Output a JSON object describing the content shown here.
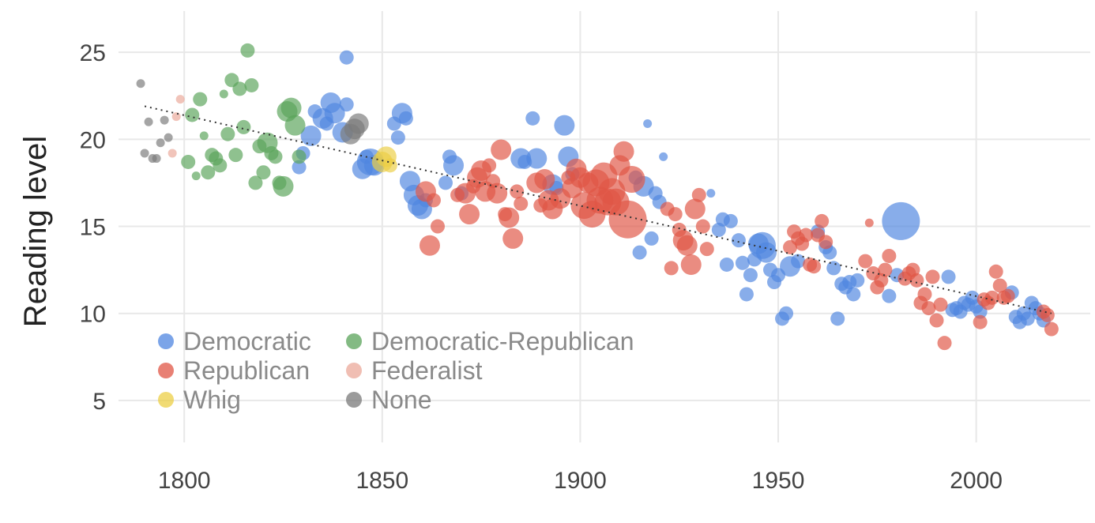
{
  "chart_data": {
    "type": "scatter",
    "title": "",
    "xlabel": "",
    "ylabel": "Reading level",
    "xlim": [
      1783,
      2030
    ],
    "ylim": [
      2.5,
      28
    ],
    "x_ticks": [
      1800,
      1850,
      1900,
      1950,
      2000
    ],
    "y_ticks": [
      5,
      10,
      15,
      20,
      25
    ],
    "grid": true,
    "legend_position": "bottom-left",
    "trendline": {
      "style": "dotted",
      "x": [
        1790,
        2019
      ],
      "y": [
        21.9,
        10.0
      ]
    },
    "series": [
      {
        "name": "Democratic",
        "color": "#4f86e0",
        "points": [
          [
            1829,
            18.4,
            2
          ],
          [
            1830,
            19.2,
            2
          ],
          [
            1832,
            20.2,
            3
          ],
          [
            1833,
            21.6,
            2
          ],
          [
            1835,
            21.2,
            3
          ],
          [
            1836,
            20.9,
            2
          ],
          [
            1837,
            22.1,
            3
          ],
          [
            1838,
            21.5,
            3
          ],
          [
            1840,
            20.4,
            3
          ],
          [
            1841,
            22.0,
            2
          ],
          [
            1841,
            24.7,
            2
          ],
          [
            1845,
            18.3,
            3
          ],
          [
            1846,
            19.0,
            2
          ],
          [
            1847,
            18.7,
            4
          ],
          [
            1848,
            18.5,
            3
          ],
          [
            1853,
            20.9,
            2
          ],
          [
            1854,
            20.1,
            2
          ],
          [
            1855,
            21.5,
            3
          ],
          [
            1856,
            21.2,
            2
          ],
          [
            1857,
            17.6,
            3
          ],
          [
            1858,
            16.8,
            3
          ],
          [
            1859,
            16.2,
            3
          ],
          [
            1860,
            16.0,
            3
          ],
          [
            1861,
            16.5,
            2
          ],
          [
            1866,
            17.5,
            2
          ],
          [
            1867,
            19.0,
            2
          ],
          [
            1868,
            18.5,
            3
          ],
          [
            1870,
            16.9,
            2
          ],
          [
            1885,
            18.9,
            3
          ],
          [
            1886,
            18.7,
            2
          ],
          [
            1888,
            21.2,
            2
          ],
          [
            1889,
            18.9,
            3
          ],
          [
            1893,
            17.4,
            3
          ],
          [
            1894,
            17.2,
            2
          ],
          [
            1896,
            20.8,
            3
          ],
          [
            1897,
            19.0,
            3
          ],
          [
            1898,
            18.0,
            2
          ],
          [
            1914,
            17.8,
            2
          ],
          [
            1915,
            13.5,
            2
          ],
          [
            1916,
            17.3,
            3
          ],
          [
            1917,
            20.9,
            1
          ],
          [
            1918,
            14.3,
            2
          ],
          [
            1919,
            16.9,
            2
          ],
          [
            1920,
            16.4,
            2
          ],
          [
            1921,
            19.0,
            1
          ],
          [
            1933,
            16.9,
            1
          ],
          [
            1935,
            14.8,
            2
          ],
          [
            1936,
            15.4,
            2
          ],
          [
            1937,
            12.8,
            2
          ],
          [
            1938,
            15.3,
            2
          ],
          [
            1940,
            14.2,
            2
          ],
          [
            1941,
            12.9,
            2
          ],
          [
            1942,
            11.1,
            2
          ],
          [
            1943,
            12.2,
            2
          ],
          [
            1944,
            13.1,
            2
          ],
          [
            1945,
            14.0,
            3
          ],
          [
            1946,
            13.9,
            4
          ],
          [
            1947,
            13.5,
            3
          ],
          [
            1948,
            12.5,
            2
          ],
          [
            1949,
            11.8,
            2
          ],
          [
            1950,
            12.2,
            2
          ],
          [
            1951,
            9.7,
            2
          ],
          [
            1952,
            10.0,
            2
          ],
          [
            1953,
            12.7,
            3
          ],
          [
            1955,
            13.0,
            2
          ],
          [
            1960,
            14.7,
            2
          ],
          [
            1962,
            13.8,
            2
          ],
          [
            1963,
            13.5,
            2
          ],
          [
            1964,
            12.6,
            2
          ],
          [
            1965,
            9.7,
            2
          ],
          [
            1966,
            11.7,
            2
          ],
          [
            1967,
            11.5,
            2
          ],
          [
            1968,
            11.8,
            2
          ],
          [
            1969,
            11.1,
            2
          ],
          [
            1970,
            11.9,
            2
          ],
          [
            1978,
            11.0,
            2
          ],
          [
            1980,
            12.2,
            2
          ],
          [
            1981,
            15.3,
            5
          ],
          [
            1993,
            12.1,
            2
          ],
          [
            1994,
            10.2,
            2
          ],
          [
            1995,
            10.3,
            2
          ],
          [
            1996,
            10.1,
            2
          ],
          [
            1997,
            10.6,
            2
          ],
          [
            1998,
            10.5,
            2
          ],
          [
            1999,
            10.9,
            2
          ],
          [
            2000,
            10.4,
            2
          ],
          [
            2001,
            10.1,
            2
          ],
          [
            2009,
            11.2,
            2
          ],
          [
            2010,
            9.8,
            2
          ],
          [
            2011,
            9.5,
            2
          ],
          [
            2012,
            10.0,
            2
          ],
          [
            2013,
            9.7,
            2
          ],
          [
            2014,
            10.6,
            2
          ],
          [
            2015,
            10.3,
            2
          ],
          [
            2016,
            10.0,
            2
          ],
          [
            2017,
            9.6,
            2
          ]
        ]
      },
      {
        "name": "Democratic-Republican",
        "color": "#5aa35a",
        "points": [
          [
            1801,
            18.7,
            2
          ],
          [
            1802,
            21.4,
            2
          ],
          [
            1803,
            17.9,
            1
          ],
          [
            1804,
            22.3,
            2
          ],
          [
            1805,
            20.2,
            1
          ],
          [
            1806,
            18.1,
            2
          ],
          [
            1807,
            19.1,
            2
          ],
          [
            1808,
            18.9,
            2
          ],
          [
            1809,
            18.5,
            2
          ],
          [
            1810,
            22.6,
            1
          ],
          [
            1811,
            20.3,
            2
          ],
          [
            1812,
            23.4,
            2
          ],
          [
            1813,
            19.1,
            2
          ],
          [
            1814,
            22.9,
            2
          ],
          [
            1815,
            20.7,
            2
          ],
          [
            1816,
            25.1,
            2
          ],
          [
            1817,
            23.1,
            2
          ],
          [
            1818,
            17.5,
            2
          ],
          [
            1819,
            19.6,
            2
          ],
          [
            1820,
            18.1,
            2
          ],
          [
            1821,
            19.8,
            3
          ],
          [
            1822,
            19.2,
            2
          ],
          [
            1823,
            19.0,
            2
          ],
          [
            1824,
            17.5,
            2
          ],
          [
            1825,
            17.3,
            3
          ],
          [
            1826,
            21.6,
            3
          ],
          [
            1827,
            21.8,
            3
          ],
          [
            1828,
            20.8,
            3
          ],
          [
            1829,
            19.0,
            2
          ]
        ]
      },
      {
        "name": "Republican",
        "color": "#e05545",
        "points": [
          [
            1861,
            17.0,
            3
          ],
          [
            1862,
            13.9,
            3
          ],
          [
            1863,
            16.5,
            2
          ],
          [
            1864,
            15.0,
            2
          ],
          [
            1869,
            16.8,
            2
          ],
          [
            1871,
            16.9,
            3
          ],
          [
            1872,
            15.7,
            3
          ],
          [
            1873,
            17.3,
            2
          ],
          [
            1874,
            17.8,
            3
          ],
          [
            1875,
            18.2,
            3
          ],
          [
            1876,
            17.0,
            3
          ],
          [
            1877,
            18.5,
            2
          ],
          [
            1878,
            17.6,
            2
          ],
          [
            1879,
            16.9,
            3
          ],
          [
            1880,
            19.4,
            3
          ],
          [
            1881,
            15.7,
            2
          ],
          [
            1882,
            15.5,
            3
          ],
          [
            1883,
            14.3,
            3
          ],
          [
            1884,
            17.0,
            2
          ],
          [
            1885,
            16.3,
            2
          ],
          [
            1889,
            17.5,
            3
          ],
          [
            1890,
            16.2,
            2
          ],
          [
            1891,
            17.7,
            3
          ],
          [
            1892,
            16.5,
            3
          ],
          [
            1893,
            16.0,
            3
          ],
          [
            1895,
            16.6,
            3
          ],
          [
            1897,
            17.8,
            2
          ],
          [
            1898,
            17.2,
            3
          ],
          [
            1899,
            18.3,
            3
          ],
          [
            1900,
            17.8,
            3
          ],
          [
            1901,
            16.2,
            4
          ],
          [
            1902,
            17.5,
            3
          ],
          [
            1903,
            15.7,
            4
          ],
          [
            1904,
            17.5,
            4
          ],
          [
            1905,
            16.5,
            4
          ],
          [
            1906,
            17.9,
            4
          ],
          [
            1907,
            16.4,
            4
          ],
          [
            1908,
            17.0,
            4
          ],
          [
            1909,
            16.4,
            4
          ],
          [
            1910,
            18.5,
            3
          ],
          [
            1911,
            19.3,
            3
          ],
          [
            1912,
            15.4,
            5
          ],
          [
            1913,
            17.7,
            4
          ],
          [
            1922,
            16.0,
            2
          ],
          [
            1923,
            12.6,
            2
          ],
          [
            1924,
            15.7,
            2
          ],
          [
            1925,
            14.8,
            2
          ],
          [
            1926,
            14.2,
            3
          ],
          [
            1927,
            13.9,
            3
          ],
          [
            1928,
            12.8,
            3
          ],
          [
            1929,
            16.0,
            3
          ],
          [
            1930,
            16.8,
            2
          ],
          [
            1931,
            15.0,
            2
          ],
          [
            1932,
            13.7,
            2
          ],
          [
            1953,
            13.8,
            2
          ],
          [
            1954,
            14.7,
            2
          ],
          [
            1955,
            14.3,
            2
          ],
          [
            1956,
            14.0,
            2
          ],
          [
            1957,
            14.5,
            2
          ],
          [
            1958,
            12.8,
            2
          ],
          [
            1959,
            12.7,
            2
          ],
          [
            1960,
            14.5,
            2
          ],
          [
            1961,
            15.3,
            2
          ],
          [
            1962,
            14.1,
            2
          ],
          [
            1972,
            13.0,
            2
          ],
          [
            1973,
            15.2,
            1
          ],
          [
            1974,
            12.3,
            2
          ],
          [
            1975,
            11.5,
            2
          ],
          [
            1976,
            11.9,
            2
          ],
          [
            1977,
            12.5,
            2
          ],
          [
            1978,
            13.3,
            2
          ],
          [
            1982,
            12.0,
            2
          ],
          [
            1983,
            12.3,
            2
          ],
          [
            1984,
            12.5,
            2
          ],
          [
            1985,
            11.9,
            2
          ],
          [
            1986,
            10.6,
            2
          ],
          [
            1987,
            11.1,
            2
          ],
          [
            1988,
            10.3,
            2
          ],
          [
            1989,
            12.1,
            2
          ],
          [
            1990,
            9.6,
            2
          ],
          [
            1991,
            10.5,
            2
          ],
          [
            1992,
            8.3,
            2
          ],
          [
            2001,
            9.5,
            2
          ],
          [
            2002,
            10.8,
            2
          ],
          [
            2003,
            10.6,
            2
          ],
          [
            2004,
            10.9,
            2
          ],
          [
            2005,
            12.4,
            2
          ],
          [
            2006,
            11.6,
            2
          ],
          [
            2007,
            10.9,
            2
          ],
          [
            2008,
            11.0,
            2
          ],
          [
            2017,
            10.1,
            2
          ],
          [
            2018,
            9.9,
            2
          ],
          [
            2019,
            9.1,
            2
          ]
        ]
      },
      {
        "name": "Federalist",
        "color": "#eba89a",
        "points": [
          [
            1797,
            19.2,
            1
          ],
          [
            1798,
            21.3,
            1
          ],
          [
            1799,
            22.3,
            1
          ]
        ]
      },
      {
        "name": "Whig",
        "color": "#eccf45",
        "points": [
          [
            1850,
            18.7,
            3
          ],
          [
            1851,
            19.0,
            3
          ],
          [
            1852,
            18.5,
            2
          ]
        ]
      },
      {
        "name": "None",
        "color": "#7a7a7a",
        "points": [
          [
            1789,
            23.2,
            1
          ],
          [
            1790,
            19.2,
            1
          ],
          [
            1791,
            21.0,
            1
          ],
          [
            1792,
            18.9,
            1
          ],
          [
            1793,
            18.9,
            1
          ],
          [
            1794,
            19.8,
            1
          ],
          [
            1795,
            21.1,
            1
          ],
          [
            1796,
            20.1,
            1
          ],
          [
            1842,
            20.3,
            3
          ],
          [
            1843,
            20.6,
            3
          ],
          [
            1844,
            20.9,
            3
          ]
        ]
      }
    ]
  },
  "legend": [
    {
      "label": "Democratic",
      "color": "#4f86e0"
    },
    {
      "label": "Democratic-Republican",
      "color": "#5aa35a"
    },
    {
      "label": "Republican",
      "color": "#e05545"
    },
    {
      "label": "Federalist",
      "color": "#eba89a"
    },
    {
      "label": "Whig",
      "color": "#eccf45"
    },
    {
      "label": "None",
      "color": "#7a7a7a"
    }
  ]
}
